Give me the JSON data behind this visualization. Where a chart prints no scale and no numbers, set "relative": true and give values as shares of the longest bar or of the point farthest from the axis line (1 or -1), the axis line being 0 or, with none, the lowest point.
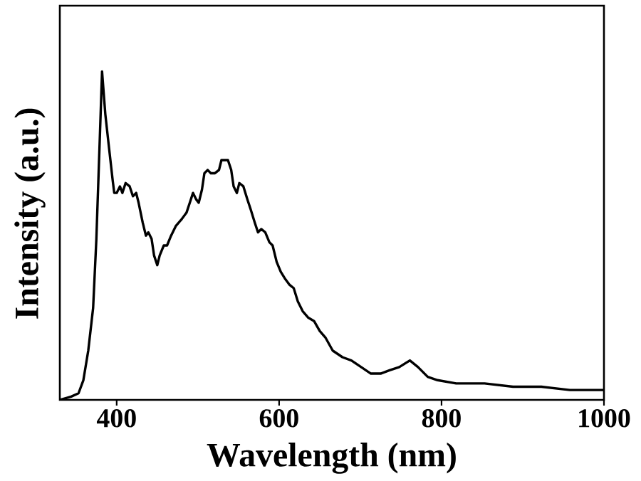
{
  "chart_data": {
    "type": "line",
    "xlabel": "Wavelength (nm)",
    "ylabel": "Intensity (a.u.)",
    "relative": true,
    "xlim": [
      330,
      1000
    ],
    "xticks": [
      400,
      600,
      800,
      1000
    ],
    "color": "#000000",
    "marker": "none",
    "line_style": "solid",
    "x": [
      330,
      344,
      353,
      359,
      365,
      371,
      375,
      379,
      382,
      386,
      390,
      395,
      397,
      400,
      404,
      407,
      411,
      416,
      420,
      424,
      427,
      432,
      436,
      439,
      443,
      446,
      450,
      453,
      458,
      462,
      467,
      473,
      480,
      486,
      490,
      494,
      498,
      501,
      505,
      508,
      512,
      516,
      521,
      526,
      529,
      534,
      537,
      541,
      544,
      548,
      551,
      556,
      561,
      565,
      570,
      574,
      578,
      583,
      588,
      592,
      597,
      602,
      607,
      613,
      618,
      623,
      629,
      636,
      643,
      650,
      657,
      666,
      678,
      689,
      701,
      713,
      725,
      736,
      748,
      761,
      771,
      783,
      795,
      818,
      853,
      888,
      923,
      958,
      1000
    ],
    "values": [
      0,
      0.01,
      0.02,
      0.06,
      0.15,
      0.28,
      0.49,
      0.78,
      1.0,
      0.87,
      0.78,
      0.67,
      0.63,
      0.63,
      0.65,
      0.63,
      0.66,
      0.65,
      0.62,
      0.63,
      0.6,
      0.54,
      0.5,
      0.51,
      0.49,
      0.44,
      0.41,
      0.44,
      0.47,
      0.47,
      0.5,
      0.53,
      0.55,
      0.57,
      0.6,
      0.63,
      0.61,
      0.6,
      0.64,
      0.69,
      0.7,
      0.69,
      0.69,
      0.7,
      0.73,
      0.73,
      0.73,
      0.7,
      0.65,
      0.63,
      0.66,
      0.65,
      0.61,
      0.58,
      0.54,
      0.51,
      0.52,
      0.51,
      0.48,
      0.47,
      0.42,
      0.39,
      0.37,
      0.35,
      0.34,
      0.3,
      0.27,
      0.25,
      0.24,
      0.21,
      0.19,
      0.15,
      0.13,
      0.12,
      0.1,
      0.08,
      0.08,
      0.09,
      0.1,
      0.12,
      0.1,
      0.07,
      0.06,
      0.05,
      0.05,
      0.04,
      0.04,
      0.03,
      0.03
    ]
  }
}
